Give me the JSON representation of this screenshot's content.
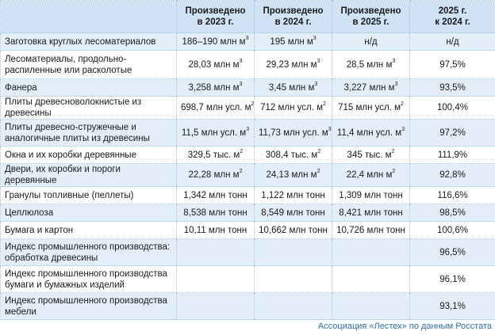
{
  "table": {
    "headers": [
      "",
      "Произведено в 2023 г.",
      "Произведено в 2024 г.",
      "Произведено в 2025 г.",
      "2025 г. к 2024 г."
    ],
    "header_lines": [
      [
        "",
        ""
      ],
      [
        "Произведено",
        "в 2023 г."
      ],
      [
        "Произведено",
        "в 2024 г."
      ],
      [
        "Произведено",
        "в 2025 г."
      ],
      [
        "2025 г.",
        "к 2024 г."
      ]
    ],
    "rows": [
      {
        "name": "Заготовка круглых лесоматериалов",
        "y2023": "186–190",
        "y2023_unit": "млн м",
        "y2023_sup": "3",
        "y2024": "195",
        "y2024_unit": "млн м",
        "y2024_sup": "3",
        "y2025": "н/д",
        "y2025_unit": "",
        "y2025_sup": "",
        "ratio": "н/д"
      },
      {
        "name": "Лесоматериалы, продольно-распиленные или расколотые",
        "y2023": "28,03",
        "y2023_unit": "млн м",
        "y2023_sup": "3",
        "y2024": "29,23",
        "y2024_unit": "млн м",
        "y2024_sup": "3",
        "y2025": "28,5",
        "y2025_unit": "млн м",
        "y2025_sup": "3",
        "ratio": "97,5%"
      },
      {
        "name": "Фанера",
        "y2023": "3,258",
        "y2023_unit": "млн м",
        "y2023_sup": "3",
        "y2024": "3,45",
        "y2024_unit": "млн м",
        "y2024_sup": "3",
        "y2025": "3,227",
        "y2025_unit": "млн м",
        "y2025_sup": "3",
        "ratio": "93,5%"
      },
      {
        "name": "Плиты древесноволокнистые из древесины",
        "y2023": "698,7",
        "y2023_unit": "млн усл. м",
        "y2023_sup": "2",
        "y2024": "712",
        "y2024_unit": "млн усл. м",
        "y2024_sup": "2",
        "y2025": "715",
        "y2025_unit": "млн усл. м",
        "y2025_sup": "2",
        "ratio": "100,4%"
      },
      {
        "name": "Плиты древесно-стружечные и аналогичные плиты из древесины",
        "y2023": "11,5",
        "y2023_unit": "млн усл. м",
        "y2023_sup": "3",
        "y2024": "11,73",
        "y2024_unit": "млн усл. м",
        "y2024_sup": "3",
        "y2025": "11,4",
        "y2025_unit": "млн усл. м",
        "y2025_sup": "3",
        "ratio": "97,2%"
      },
      {
        "name": "Окна и их коробки деревянные",
        "y2023": "329,5",
        "y2023_unit": "тыс. м",
        "y2023_sup": "2",
        "y2024": "308,4",
        "y2024_unit": "тыс. м",
        "y2024_sup": "2",
        "y2025": "345",
        "y2025_unit": "тыс. м",
        "y2025_sup": "2",
        "ratio": "111,9%"
      },
      {
        "name": "Двери, их коробки и пороги деревянные",
        "y2023": "22,28",
        "y2023_unit": "млн м",
        "y2023_sup": "2",
        "y2024": "24,13",
        "y2024_unit": "млн м",
        "y2024_sup": "2",
        "y2025": "22,4",
        "y2025_unit": "млн м",
        "y2025_sup": "2",
        "ratio": "92,8%"
      },
      {
        "name": "Гранулы топливные (пеллеты)",
        "y2023": "1,342",
        "y2023_unit": "млн тонн",
        "y2023_sup": "",
        "y2024": "1,122",
        "y2024_unit": "млн тонн",
        "y2024_sup": "",
        "y2025": "1,309",
        "y2025_unit": "млн тонн",
        "y2025_sup": "",
        "ratio": "116,6%"
      },
      {
        "name": "Целлюлоза",
        "y2023": "8,538",
        "y2023_unit": "млн тонн",
        "y2023_sup": "",
        "y2024": "8,549",
        "y2024_unit": "млн тонн",
        "y2024_sup": "",
        "y2025": "8,421",
        "y2025_unit": "млн тонн",
        "y2025_sup": "",
        "ratio": "98,5%"
      },
      {
        "name": "Бумага и картон",
        "y2023": "10,11",
        "y2023_unit": "млн тонн",
        "y2023_sup": "",
        "y2024": "10,662",
        "y2024_unit": "млн тонн",
        "y2024_sup": "",
        "y2025": "10,726",
        "y2025_unit": "млн тонн",
        "y2025_sup": "",
        "ratio": "100,6%"
      },
      {
        "name": "Индекс промышленного производства: обработка древесины",
        "y2023": "",
        "y2023_unit": "",
        "y2023_sup": "",
        "y2024": "",
        "y2024_unit": "",
        "y2024_sup": "",
        "y2025": "",
        "y2025_unit": "",
        "y2025_sup": "",
        "ratio": "96,5%"
      },
      {
        "name": "Индекс промышленного производства бумаги и бумажных изделий",
        "y2023": "",
        "y2023_unit": "",
        "y2023_sup": "",
        "y2024": "",
        "y2024_unit": "",
        "y2024_sup": "",
        "y2025": "",
        "y2025_unit": "",
        "y2025_sup": "",
        "ratio": "96,1%"
      },
      {
        "name": "Индекс промышленного производства мебели",
        "y2023": "",
        "y2023_unit": "",
        "y2023_sup": "",
        "y2024": "",
        "y2024_unit": "",
        "y2024_sup": "",
        "y2025": "",
        "y2025_unit": "",
        "y2025_sup": "",
        "ratio": "93,1%"
      }
    ]
  },
  "source": "Ассоциация «Лестех» по данным Росстата",
  "colors": {
    "header_bg": "#cfe3f5",
    "alt_row_bg": "#e4eef8",
    "border": "#9cc6e6",
    "source_text": "#2f6fb5"
  }
}
